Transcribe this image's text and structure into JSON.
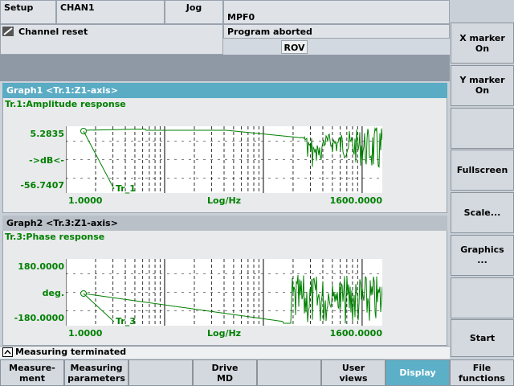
{
  "header": {
    "mode": "Setup",
    "channel": "CHAN1",
    "op_mode": "Jog",
    "program": "MPF0",
    "channel_status": "Channel reset",
    "program_status": "Program aborted",
    "override": "ROV"
  },
  "graphs": [
    {
      "title": "Graph1 <Tr.1:Z1-axis>",
      "subtitle": "Tr.1:Amplitude response",
      "y_labels": [
        "5.2835",
        "->dB<-",
        "-56.7407"
      ],
      "x_labels": [
        "1.0000",
        "Log/Hz",
        "1600.0000"
      ],
      "trace_label": "Tr_1"
    },
    {
      "title": "Graph2 <Tr.3:Z1-axis>",
      "subtitle": "Tr.3:Phase response",
      "y_labels": [
        "180.0000",
        "deg.",
        "-180.0000"
      ],
      "x_labels": [
        "1.0000",
        "Log/Hz",
        "1600.0000"
      ],
      "trace_label": "Tr_3"
    }
  ],
  "status": "Measuring terminated",
  "vertical_softkeys": [
    [
      "X marker",
      "On"
    ],
    [
      "Y marker",
      "On"
    ],
    [],
    [
      "Fullscreen"
    ],
    [
      "Scale..."
    ],
    [
      "Graphics",
      "..."
    ],
    [],
    [
      "Start"
    ]
  ],
  "horizontal_softkeys": [
    [
      "Measure-",
      "ment"
    ],
    [
      "Measuring",
      "parameters"
    ],
    [],
    [
      "Drive",
      "MD"
    ],
    [],
    [
      "User",
      "views"
    ],
    [
      "Display"
    ],
    [
      "File",
      "functions"
    ]
  ]
}
